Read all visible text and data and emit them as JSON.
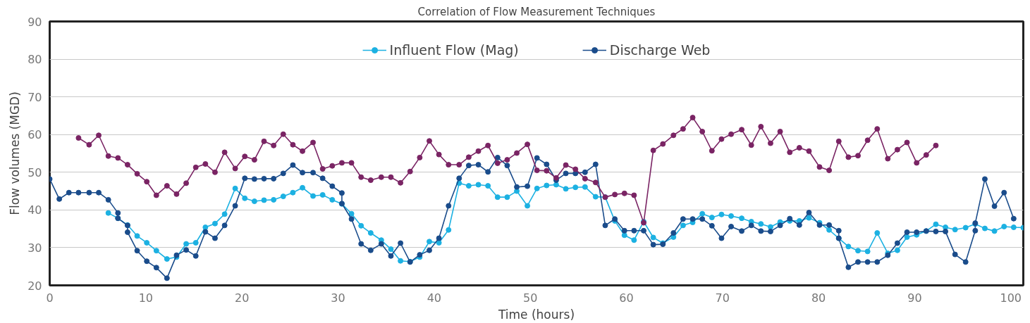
{
  "chart_data": {
    "type": "line",
    "title": "Correlation of Flow Measurement Techniques",
    "xlabel": "Time (hours)",
    "ylabel": "Flow volumes (MGD)",
    "xlim": [
      0,
      101.3
    ],
    "xticks": [
      0,
      10,
      20,
      30,
      40,
      50,
      60,
      70,
      80,
      90,
      100
    ],
    "ylim": [
      20,
      90
    ],
    "yticks": [
      20,
      30,
      40,
      50,
      60,
      70,
      80,
      90
    ],
    "grid": "y",
    "legend": "top",
    "marker": "circle",
    "line_style": "solid",
    "series": [
      {
        "name": "Influent Flow (Mag)",
        "color": "#1cb1e2",
        "x": [
          6.1,
          7.1,
          8.1,
          9.1,
          10.1,
          11.1,
          12.2,
          13.2,
          14.2,
          15.2,
          16.2,
          17.2,
          18.2,
          19.3,
          20.3,
          21.3,
          22.3,
          23.3,
          24.3,
          25.3,
          26.3,
          27.4,
          28.4,
          29.4,
          30.4,
          31.4,
          32.4,
          33.4,
          34.5,
          35.5,
          36.5,
          37.5,
          38.5,
          39.5,
          40.5,
          41.5,
          42.6,
          43.6,
          44.6,
          45.6,
          46.6,
          47.6,
          48.6,
          49.7,
          50.7,
          51.7,
          52.7,
          53.7,
          54.7,
          55.7,
          56.8,
          57.8,
          58.8,
          59.8,
          60.8,
          61.8,
          62.8,
          63.8,
          64.9,
          65.9,
          66.9,
          67.9,
          68.9,
          69.9,
          70.9,
          72.0,
          73.0,
          74.0,
          75.0,
          76.0,
          77.0,
          78.0,
          79.0,
          80.1,
          81.1,
          82.1,
          83.1,
          84.1,
          85.1,
          86.1,
          87.2,
          88.2,
          89.2,
          90.2,
          91.2,
          92.2,
          93.2,
          94.2,
          95.3,
          96.3,
          97.3,
          98.3,
          99.3,
          100.3,
          101.3
        ],
        "values": [
          39.2,
          37.8,
          36,
          33.1,
          31.3,
          29.2,
          27,
          27.5,
          31,
          31.3,
          35.4,
          36.4,
          38.9,
          45.7,
          43.1,
          42.3,
          42.6,
          42.7,
          43.6,
          44.6,
          45.9,
          43.7,
          44,
          42.7,
          41.6,
          39,
          35.8,
          33.9,
          32,
          29.6,
          26.5,
          26.3,
          27.5,
          31.6,
          31.3,
          34.7,
          47.1,
          46.4,
          46.7,
          46.4,
          43.4,
          43.4,
          45,
          41.1,
          45.7,
          46.5,
          46.7,
          45.6,
          46,
          46.1,
          43.5,
          43.4,
          37.1,
          33.3,
          32,
          36.9,
          32.7,
          31.2,
          32.8,
          35.9,
          36.7,
          39,
          38,
          38.8,
          38.4,
          37.8,
          36.9,
          36.3,
          35.5,
          36.8,
          37.1,
          37.1,
          37.9,
          36.6,
          34.7,
          32.5,
          30.3,
          29.2,
          29,
          33.9,
          28.5,
          29.3,
          32.8,
          33.4,
          34.4,
          36.2,
          35.4,
          34.8,
          35.3,
          36.3,
          35.1,
          34.4,
          35.6,
          35.4,
          35.3
        ]
      },
      {
        "name": "Discharge Web",
        "color": "#1a4c8b",
        "x": [
          0,
          1.0,
          2.0,
          3.0,
          4.1,
          5.1,
          6.1,
          7.1,
          7.1,
          8.1,
          8.1,
          9.1,
          10.1,
          11.1,
          12.2,
          13.2,
          14.2,
          15.2,
          16.2,
          17.2,
          18.2,
          19.3,
          20.3,
          21.3,
          22.3,
          23.3,
          24.3,
          25.3,
          26.3,
          27.4,
          28.4,
          29.4,
          30.4,
          30.4,
          31.4,
          32.4,
          33.4,
          34.5,
          35.5,
          36.5,
          37.5,
          38.5,
          39.5,
          40.5,
          41.5,
          42.6,
          43.6,
          44.6,
          45.6,
          46.6,
          47.6,
          48.6,
          49.7,
          50.7,
          51.7,
          52.7,
          53.7,
          54.7,
          55.7,
          56.8,
          57.8,
          58.8,
          59.8,
          60.8,
          61.8,
          62.8,
          63.8,
          64.9,
          65.9,
          66.9,
          67.9,
          68.9,
          69.9,
          70.9,
          72.0,
          73.0,
          74.0,
          75.0,
          76.0,
          77.0,
          78.0,
          79.0,
          80.1,
          81.1,
          82.1,
          82.1,
          83.1,
          84.1,
          85.1,
          86.1,
          87.2,
          88.2,
          89.2,
          90.2,
          91.2,
          92.2,
          93.2,
          94.2,
          95.3,
          96.3,
          96.3,
          97.3,
          98.3,
          99.3,
          100.3
        ],
        "values": [
          48.2,
          42.9,
          44.6,
          44.6,
          44.6,
          44.6,
          42.7,
          39.2,
          37.8,
          35.9,
          34.1,
          29.2,
          26.4,
          24.7,
          21.9,
          28,
          29.4,
          27.8,
          34.2,
          32.5,
          35.9,
          41.1,
          48.4,
          48.2,
          48.3,
          48.3,
          49.7,
          51.9,
          49.9,
          49.9,
          48.4,
          46.3,
          44.5,
          41.7,
          37.6,
          31,
          29.3,
          31,
          27.8,
          31.2,
          26.2,
          28.1,
          29.3,
          32.5,
          41.1,
          48.4,
          51.8,
          52,
          50.1,
          53.9,
          51.8,
          46.1,
          46.3,
          53.8,
          52.1,
          47.9,
          49.7,
          49.7,
          50,
          52.1,
          35.9,
          37.6,
          34.5,
          34.5,
          34.5,
          30.8,
          30.9,
          33.9,
          37.6,
          37.6,
          37.6,
          35.8,
          32.5,
          35.6,
          34.4,
          35.9,
          34.4,
          34.3,
          35.9,
          37.7,
          36,
          39.3,
          36,
          36,
          34.5,
          32.5,
          24.8,
          26.2,
          26.2,
          26.2,
          28,
          31.2,
          34.1,
          34.1,
          34.4,
          34.3,
          34.3,
          28.2,
          26.2,
          34.5,
          36.5,
          48.2,
          41,
          44.6,
          37.7
        ]
      },
      {
        "color": "#7a2464",
        "x": [
          3.0,
          4.1,
          5.1,
          6.1,
          7.1,
          8.1,
          9.1,
          10.1,
          11.1,
          12.2,
          13.2,
          14.2,
          15.2,
          16.2,
          17.2,
          18.2,
          19.3,
          20.3,
          21.3,
          22.3,
          23.3,
          24.3,
          25.3,
          26.3,
          27.4,
          28.4,
          29.4,
          30.4,
          31.4,
          32.4,
          33.4,
          34.5,
          35.5,
          36.5,
          37.5,
          38.5,
          39.5,
          40.5,
          41.5,
          42.6,
          43.6,
          44.6,
          45.6,
          46.6,
          47.6,
          48.6,
          49.7,
          50.7,
          51.7,
          52.7,
          53.7,
          54.7,
          55.7,
          56.8,
          57.8,
          58.8,
          59.8,
          60.8,
          61.8,
          62.8,
          63.8,
          64.9,
          65.9,
          66.9,
          67.9,
          68.9,
          69.9,
          70.9,
          72.0,
          73.0,
          74.0,
          75.0,
          76.0,
          77.0,
          78.0,
          79.0,
          80.1,
          81.1,
          82.1,
          83.1,
          84.1,
          85.1,
          86.1,
          87.2,
          88.2,
          89.2,
          90.2,
          91.2,
          92.2
        ],
        "values": [
          59.1,
          57.3,
          59.8,
          54.3,
          53.8,
          52,
          49.6,
          47.5,
          43.9,
          46.4,
          44.2,
          47.1,
          51.3,
          52.2,
          50,
          55.3,
          51,
          54.2,
          53.3,
          58.2,
          57.1,
          60.1,
          57.3,
          55.6,
          57.9,
          50.9,
          51.7,
          52.5,
          52.5,
          48.7,
          47.9,
          48.7,
          48.7,
          47.2,
          50.2,
          53.9,
          58.3,
          54.7,
          52,
          52,
          54,
          55.6,
          57.1,
          52.4,
          53.3,
          55.1,
          57.4,
          50.5,
          50.4,
          48.5,
          51.9,
          50.8,
          48.3,
          47.3,
          43.4,
          44.1,
          44.4,
          43.9,
          36.6,
          55.8,
          57.5,
          59.8,
          61.5,
          64.5,
          60.8,
          55.7,
          58.8,
          60.1,
          61.3,
          57.2,
          62.1,
          57.7,
          60.8,
          55.3,
          56.5,
          55.6,
          51.4,
          50.5,
          58.2,
          54,
          54.4,
          58.5,
          61.5,
          53.6,
          56,
          57.9,
          52.5,
          54.6,
          57.1
        ]
      }
    ]
  }
}
